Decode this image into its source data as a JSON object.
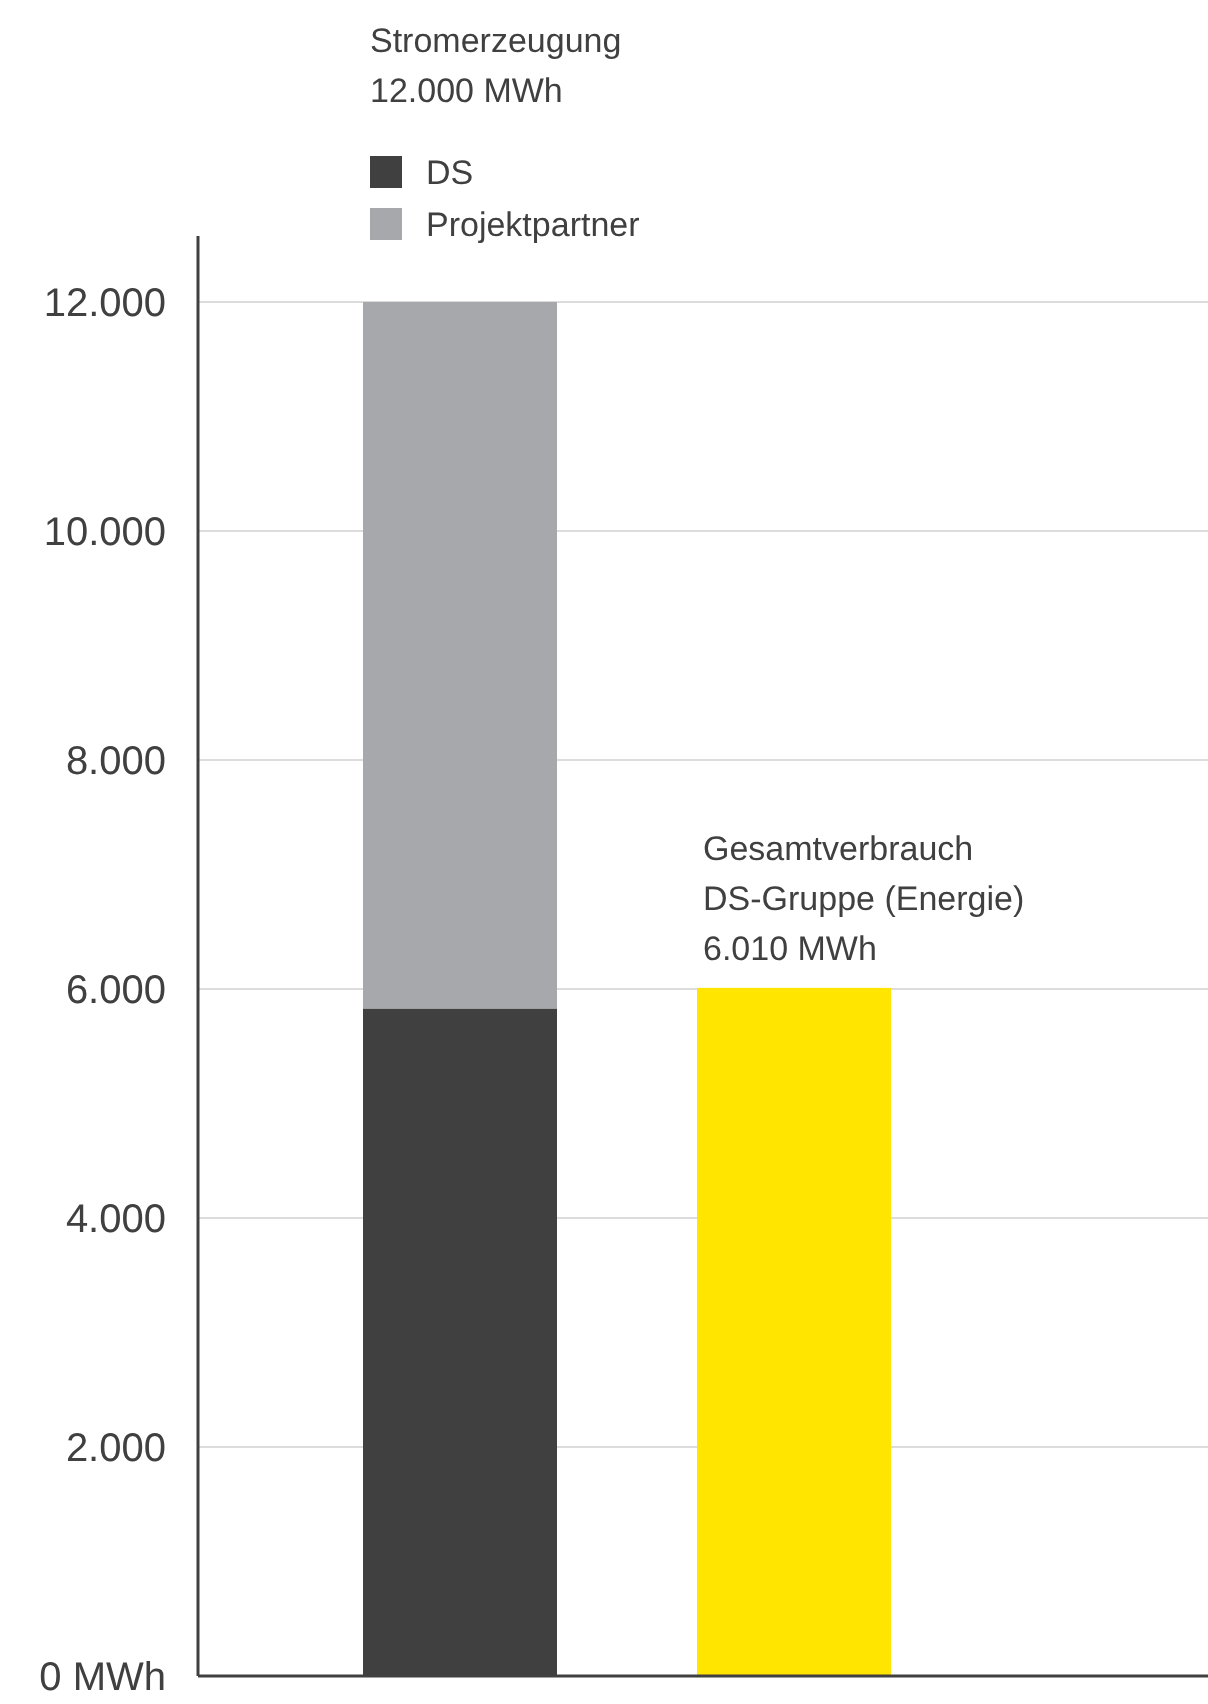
{
  "chart_data": {
    "type": "bar",
    "stacked": true,
    "categories": [
      null,
      null
    ],
    "series": [
      {
        "name": "DS",
        "color": "#404040",
        "values": [
          5830,
          null
        ]
      },
      {
        "name": "Projektpartner",
        "color": "#a7a8ac",
        "values": [
          6170,
          null
        ]
      },
      {
        "color": "#ffe500",
        "values": [
          null,
          6010
        ]
      }
    ],
    "annotations": [
      "Stromerzeugung\n12.000 MWh"
    ],
    "totals": [
      null,
      "Gesamtverbrauch\nDS-Gruppe (Energie)\n6.010 MWh"
    ],
    "ylim": [
      0,
      12000
    ],
    "yticks": [
      {
        "value": 0,
        "label": "0 MWh"
      },
      {
        "value": 2000,
        "label": "2.000"
      },
      {
        "value": 4000,
        "label": "4.000"
      },
      {
        "value": 6000,
        "label": "6.000"
      },
      {
        "value": 8000,
        "label": "8.000"
      },
      {
        "value": 10000,
        "label": "10.000"
      },
      {
        "value": 12000,
        "label": "12.000"
      }
    ],
    "grid": "y",
    "legend": "top left"
  }
}
